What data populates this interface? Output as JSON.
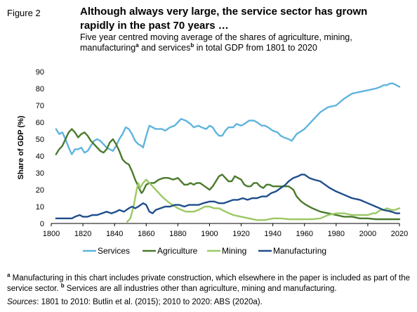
{
  "figure_label": "Figure 2",
  "title": "Although always very large, the service sector has grown rapidly in the past 70 years …",
  "subtitle": {
    "part1": "Five year centred moving average of the shares of agriculture, mining, manufacturing",
    "sup_a": "a",
    "part2": " and services",
    "sup_b": "b",
    "part3": " in total GDP from 1801 to 2020"
  },
  "footnote": {
    "sup_a": "a",
    "text_a": " Manufacturing in this chart includes private construction, which elsewhere in the paper is included as part of the service sector.",
    "sup_b": "b",
    "text_b": " Services are all industries other than agriculture, mining and manufacturing."
  },
  "source": {
    "label": "Sources",
    "text": ": 1801 to 2010: Butlin et al. (2015); 2010 to 2020: ABS (2020a)."
  },
  "chart_data": {
    "type": "line",
    "ylabel": "Share of GDP (%)",
    "xlabel": "",
    "xlim": [
      1800,
      2020
    ],
    "ylim": [
      0,
      90
    ],
    "xticks": [
      1800,
      1820,
      1840,
      1860,
      1880,
      1900,
      1920,
      1940,
      1960,
      1980,
      2000,
      2020
    ],
    "yticks": [
      0,
      10,
      20,
      30,
      40,
      50,
      60,
      70,
      80,
      90
    ],
    "grid": false,
    "legend_position": "bottom",
    "series": [
      {
        "name": "Services",
        "color": "#5fb4de",
        "points": [
          [
            1803,
            56
          ],
          [
            1805,
            53
          ],
          [
            1807,
            54
          ],
          [
            1809,
            50
          ],
          [
            1811,
            45
          ],
          [
            1813,
            41
          ],
          [
            1815,
            44
          ],
          [
            1817,
            44
          ],
          [
            1819,
            45
          ],
          [
            1821,
            42
          ],
          [
            1823,
            43
          ],
          [
            1825,
            46
          ],
          [
            1827,
            49
          ],
          [
            1829,
            50
          ],
          [
            1831,
            49
          ],
          [
            1833,
            47
          ],
          [
            1835,
            45
          ],
          [
            1837,
            44
          ],
          [
            1839,
            43
          ],
          [
            1841,
            46
          ],
          [
            1843,
            50
          ],
          [
            1845,
            53
          ],
          [
            1847,
            57
          ],
          [
            1849,
            56
          ],
          [
            1851,
            53
          ],
          [
            1853,
            49
          ],
          [
            1855,
            47
          ],
          [
            1857,
            46
          ],
          [
            1858,
            45
          ],
          [
            1860,
            52
          ],
          [
            1862,
            58
          ],
          [
            1864,
            57
          ],
          [
            1866,
            56
          ],
          [
            1870,
            56
          ],
          [
            1872,
            55
          ],
          [
            1875,
            57
          ],
          [
            1878,
            58
          ],
          [
            1880,
            60
          ],
          [
            1882,
            62
          ],
          [
            1885,
            61
          ],
          [
            1888,
            59
          ],
          [
            1890,
            57
          ],
          [
            1893,
            58
          ],
          [
            1895,
            57
          ],
          [
            1898,
            56
          ],
          [
            1900,
            58
          ],
          [
            1902,
            57
          ],
          [
            1904,
            54
          ],
          [
            1906,
            52
          ],
          [
            1908,
            52
          ],
          [
            1910,
            55
          ],
          [
            1912,
            57
          ],
          [
            1915,
            57
          ],
          [
            1917,
            59
          ],
          [
            1920,
            58
          ],
          [
            1922,
            59
          ],
          [
            1925,
            61
          ],
          [
            1928,
            61
          ],
          [
            1930,
            60
          ],
          [
            1933,
            58
          ],
          [
            1935,
            58
          ],
          [
            1937,
            57
          ],
          [
            1940,
            55
          ],
          [
            1943,
            54
          ],
          [
            1945,
            52
          ],
          [
            1947,
            51
          ],
          [
            1950,
            50
          ],
          [
            1952,
            49
          ],
          [
            1955,
            53
          ],
          [
            1960,
            56
          ],
          [
            1965,
            61
          ],
          [
            1970,
            66
          ],
          [
            1975,
            69
          ],
          [
            1980,
            70
          ],
          [
            1985,
            74
          ],
          [
            1990,
            77
          ],
          [
            1995,
            78
          ],
          [
            2000,
            79
          ],
          [
            2005,
            80
          ],
          [
            2008,
            81
          ],
          [
            2010,
            82
          ],
          [
            2012,
            82
          ],
          [
            2014,
            83
          ],
          [
            2016,
            83
          ],
          [
            2018,
            82
          ],
          [
            2020,
            81
          ]
        ]
      },
      {
        "name": "Agriculture",
        "color": "#4a7a2c",
        "points": [
          [
            1803,
            41
          ],
          [
            1805,
            44
          ],
          [
            1807,
            46
          ],
          [
            1809,
            50
          ],
          [
            1811,
            54
          ],
          [
            1813,
            56
          ],
          [
            1815,
            54
          ],
          [
            1817,
            51
          ],
          [
            1819,
            53
          ],
          [
            1821,
            54
          ],
          [
            1823,
            52
          ],
          [
            1825,
            49
          ],
          [
            1827,
            47
          ],
          [
            1829,
            45
          ],
          [
            1831,
            43
          ],
          [
            1833,
            42
          ],
          [
            1835,
            44
          ],
          [
            1837,
            48
          ],
          [
            1839,
            50
          ],
          [
            1841,
            47
          ],
          [
            1843,
            43
          ],
          [
            1845,
            38
          ],
          [
            1847,
            36
          ],
          [
            1849,
            35
          ],
          [
            1851,
            31
          ],
          [
            1853,
            26
          ],
          [
            1855,
            22
          ],
          [
            1857,
            18
          ],
          [
            1858,
            19
          ],
          [
            1860,
            23
          ],
          [
            1862,
            24
          ],
          [
            1865,
            24
          ],
          [
            1868,
            26
          ],
          [
            1871,
            27
          ],
          [
            1874,
            27
          ],
          [
            1877,
            26
          ],
          [
            1880,
            27
          ],
          [
            1882,
            25
          ],
          [
            1884,
            23
          ],
          [
            1886,
            23
          ],
          [
            1888,
            24
          ],
          [
            1890,
            23
          ],
          [
            1892,
            24
          ],
          [
            1894,
            24
          ],
          [
            1897,
            22
          ],
          [
            1900,
            20
          ],
          [
            1902,
            22
          ],
          [
            1904,
            25
          ],
          [
            1906,
            28
          ],
          [
            1908,
            29
          ],
          [
            1910,
            27
          ],
          [
            1912,
            25
          ],
          [
            1914,
            25
          ],
          [
            1916,
            28
          ],
          [
            1918,
            27
          ],
          [
            1920,
            26
          ],
          [
            1922,
            23
          ],
          [
            1924,
            22
          ],
          [
            1926,
            22
          ],
          [
            1928,
            24
          ],
          [
            1930,
            24
          ],
          [
            1932,
            22
          ],
          [
            1934,
            21
          ],
          [
            1936,
            23
          ],
          [
            1938,
            23
          ],
          [
            1940,
            22
          ],
          [
            1943,
            22
          ],
          [
            1946,
            22
          ],
          [
            1950,
            22
          ],
          [
            1953,
            20
          ],
          [
            1955,
            16
          ],
          [
            1958,
            13
          ],
          [
            1961,
            11
          ],
          [
            1965,
            9
          ],
          [
            1970,
            7
          ],
          [
            1975,
            6
          ],
          [
            1980,
            5
          ],
          [
            1985,
            4
          ],
          [
            1990,
            4
          ],
          [
            1995,
            3
          ],
          [
            2000,
            3
          ],
          [
            2005,
            2.5
          ],
          [
            2010,
            2.5
          ],
          [
            2015,
            2.5
          ],
          [
            2020,
            2.5
          ]
        ]
      },
      {
        "name": "Mining",
        "color": "#9bc965",
        "points": [
          [
            1848,
            1
          ],
          [
            1850,
            3
          ],
          [
            1852,
            10
          ],
          [
            1854,
            20
          ],
          [
            1855,
            24
          ],
          [
            1856,
            21
          ],
          [
            1858,
            24
          ],
          [
            1860,
            26
          ],
          [
            1862,
            24
          ],
          [
            1864,
            22
          ],
          [
            1866,
            20
          ],
          [
            1868,
            18
          ],
          [
            1871,
            15
          ],
          [
            1875,
            12
          ],
          [
            1880,
            9
          ],
          [
            1885,
            7
          ],
          [
            1890,
            7
          ],
          [
            1893,
            8
          ],
          [
            1895,
            9
          ],
          [
            1897,
            10
          ],
          [
            1900,
            10
          ],
          [
            1903,
            9
          ],
          [
            1906,
            9
          ],
          [
            1910,
            7
          ],
          [
            1915,
            5
          ],
          [
            1920,
            4
          ],
          [
            1925,
            3
          ],
          [
            1930,
            2
          ],
          [
            1935,
            2
          ],
          [
            1940,
            3
          ],
          [
            1945,
            3
          ],
          [
            1950,
            2.5
          ],
          [
            1955,
            2.5
          ],
          [
            1960,
            2.5
          ],
          [
            1965,
            2.5
          ],
          [
            1970,
            3
          ],
          [
            1975,
            5
          ],
          [
            1980,
            6
          ],
          [
            1985,
            6
          ],
          [
            1990,
            5
          ],
          [
            1995,
            5
          ],
          [
            2000,
            5
          ],
          [
            2003,
            6
          ],
          [
            2005,
            6
          ],
          [
            2008,
            8
          ],
          [
            2010,
            8
          ],
          [
            2012,
            9
          ],
          [
            2015,
            8
          ],
          [
            2017,
            8
          ],
          [
            2020,
            9
          ]
        ]
      },
      {
        "name": "Manufacturing",
        "color": "#1f4e8c",
        "points": [
          [
            1803,
            3
          ],
          [
            1808,
            3
          ],
          [
            1810,
            3
          ],
          [
            1813,
            3
          ],
          [
            1815,
            4
          ],
          [
            1818,
            5
          ],
          [
            1820,
            4
          ],
          [
            1823,
            4
          ],
          [
            1826,
            5
          ],
          [
            1829,
            5
          ],
          [
            1832,
            6
          ],
          [
            1835,
            7
          ],
          [
            1838,
            6
          ],
          [
            1841,
            7
          ],
          [
            1843,
            8
          ],
          [
            1846,
            7
          ],
          [
            1849,
            9
          ],
          [
            1851,
            10
          ],
          [
            1853,
            9
          ],
          [
            1855,
            10
          ],
          [
            1858,
            12
          ],
          [
            1860,
            11
          ],
          [
            1862,
            7
          ],
          [
            1864,
            6
          ],
          [
            1866,
            8
          ],
          [
            1869,
            9
          ],
          [
            1872,
            10
          ],
          [
            1875,
            10
          ],
          [
            1878,
            11
          ],
          [
            1881,
            11
          ],
          [
            1884,
            10
          ],
          [
            1887,
            11
          ],
          [
            1890,
            11
          ],
          [
            1893,
            11
          ],
          [
            1896,
            12
          ],
          [
            1900,
            13
          ],
          [
            1903,
            13
          ],
          [
            1906,
            12
          ],
          [
            1909,
            12
          ],
          [
            1912,
            13
          ],
          [
            1915,
            14
          ],
          [
            1918,
            14
          ],
          [
            1921,
            15
          ],
          [
            1924,
            14
          ],
          [
            1927,
            15
          ],
          [
            1930,
            15
          ],
          [
            1933,
            16
          ],
          [
            1936,
            16
          ],
          [
            1939,
            18
          ],
          [
            1942,
            19
          ],
          [
            1945,
            21
          ],
          [
            1948,
            23
          ],
          [
            1950,
            25
          ],
          [
            1953,
            27
          ],
          [
            1956,
            28
          ],
          [
            1958,
            29
          ],
          [
            1960,
            29
          ],
          [
            1963,
            27
          ],
          [
            1966,
            26
          ],
          [
            1970,
            25
          ],
          [
            1973,
            23
          ],
          [
            1976,
            21
          ],
          [
            1980,
            19
          ],
          [
            1985,
            17
          ],
          [
            1990,
            15
          ],
          [
            1995,
            14
          ],
          [
            2000,
            12
          ],
          [
            2005,
            10
          ],
          [
            2010,
            8
          ],
          [
            2015,
            7
          ],
          [
            2018,
            6
          ],
          [
            2020,
            6
          ]
        ]
      }
    ]
  }
}
